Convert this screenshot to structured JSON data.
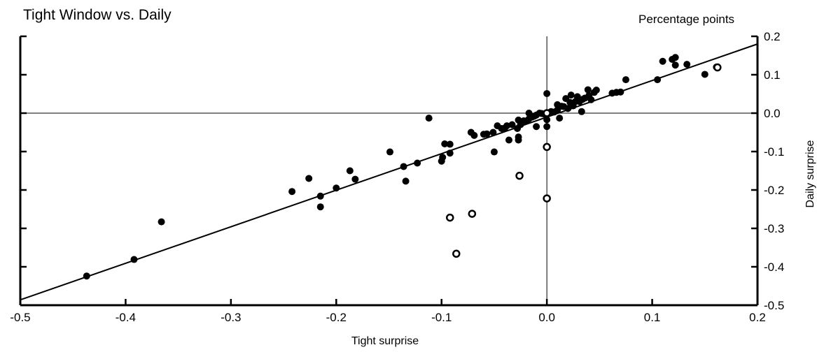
{
  "chart_data": {
    "type": "scatter",
    "title": "Tight Window vs. Daily",
    "units_label": "Percentage points",
    "xlabel": "Tight surprise",
    "ylabel": "Daily surprise",
    "xlim": [
      -0.5,
      0.2
    ],
    "ylim": [
      -0.5,
      0.2
    ],
    "x_ticks": [
      "-0.5",
      "-0.4",
      "-0.3",
      "-0.2",
      "-0.1",
      "0.0",
      "0.1",
      "0.2"
    ],
    "y_ticks": [
      "0.2",
      "0.1",
      "0.0",
      "-0.1",
      "-0.2",
      "-0.3",
      "-0.4",
      "-0.5"
    ],
    "y_axis_side": "right",
    "grid": false,
    "reference_lines": {
      "x_zero": true,
      "y_zero": true
    },
    "fit_line": {
      "from": [
        -0.5,
        -0.486
      ],
      "to": [
        0.2,
        0.18
      ]
    },
    "series": [
      {
        "marker": "filled",
        "points": [
          [
            -0.437,
            -0.424
          ],
          [
            -0.392,
            -0.381
          ],
          [
            -0.366,
            -0.283
          ],
          [
            -0.242,
            -0.204
          ],
          [
            -0.226,
            -0.17
          ],
          [
            -0.215,
            -0.216
          ],
          [
            -0.215,
            -0.244
          ],
          [
            -0.2,
            -0.195
          ],
          [
            -0.187,
            -0.15
          ],
          [
            -0.182,
            -0.172
          ],
          [
            -0.149,
            -0.101
          ],
          [
            -0.136,
            -0.139
          ],
          [
            -0.134,
            -0.177
          ],
          [
            -0.123,
            -0.13
          ],
          [
            -0.112,
            -0.013
          ],
          [
            -0.1,
            -0.125
          ],
          [
            -0.099,
            -0.115
          ],
          [
            -0.097,
            -0.08
          ],
          [
            -0.092,
            -0.081
          ],
          [
            -0.092,
            -0.104
          ],
          [
            -0.072,
            -0.05
          ],
          [
            -0.069,
            -0.058
          ],
          [
            -0.06,
            -0.055
          ],
          [
            -0.057,
            -0.054
          ],
          [
            -0.051,
            -0.05
          ],
          [
            -0.05,
            -0.101
          ],
          [
            -0.047,
            -0.033
          ],
          [
            -0.043,
            -0.04
          ],
          [
            -0.04,
            -0.039
          ],
          [
            -0.038,
            -0.033
          ],
          [
            -0.036,
            -0.07
          ],
          [
            -0.033,
            -0.03
          ],
          [
            -0.028,
            -0.04
          ],
          [
            -0.027,
            -0.018
          ],
          [
            -0.027,
            -0.062
          ],
          [
            -0.027,
            -0.07
          ],
          [
            -0.025,
            -0.03
          ],
          [
            -0.022,
            -0.02
          ],
          [
            -0.019,
            -0.02
          ],
          [
            -0.017,
            -0.015
          ],
          [
            -0.017,
            0.0
          ],
          [
            -0.014,
            -0.01
          ],
          [
            -0.012,
            -0.008
          ],
          [
            -0.01,
            -0.035
          ],
          [
            -0.01,
            -0.005
          ],
          [
            -0.007,
            0.0
          ],
          [
            -0.005,
            -0.001
          ],
          [
            -0.003,
            -0.002
          ],
          [
            0.0,
            0.051
          ],
          [
            0.0,
            -0.017
          ],
          [
            0.0,
            -0.035
          ],
          [
            0.004,
            0.004
          ],
          [
            0.007,
            0.003
          ],
          [
            0.01,
            0.022
          ],
          [
            0.01,
            0.008
          ],
          [
            0.012,
            -0.013
          ],
          [
            0.014,
            0.018
          ],
          [
            0.016,
            0.017
          ],
          [
            0.018,
            0.038
          ],
          [
            0.02,
            0.012
          ],
          [
            0.022,
            0.028
          ],
          [
            0.023,
            0.047
          ],
          [
            0.025,
            0.019
          ],
          [
            0.027,
            0.03
          ],
          [
            0.029,
            0.043
          ],
          [
            0.031,
            0.03
          ],
          [
            0.033,
            0.004
          ],
          [
            0.034,
            0.036
          ],
          [
            0.036,
            0.039
          ],
          [
            0.039,
            0.061
          ],
          [
            0.04,
            0.046
          ],
          [
            0.042,
            0.035
          ],
          [
            0.045,
            0.054
          ],
          [
            0.047,
            0.06
          ],
          [
            0.062,
            0.052
          ],
          [
            0.066,
            0.054
          ],
          [
            0.07,
            0.055
          ],
          [
            0.075,
            0.087
          ],
          [
            0.105,
            0.087
          ],
          [
            0.11,
            0.135
          ],
          [
            0.119,
            0.14
          ],
          [
            0.122,
            0.145
          ],
          [
            0.122,
            0.125
          ],
          [
            0.133,
            0.127
          ],
          [
            0.15,
            0.101
          ],
          [
            0.161,
            0.12
          ]
        ]
      },
      {
        "marker": "open",
        "points": [
          [
            -0.092,
            -0.272
          ],
          [
            -0.086,
            -0.366
          ],
          [
            -0.071,
            -0.262
          ],
          [
            -0.026,
            -0.163
          ],
          [
            0.0,
            0.0
          ],
          [
            0.0,
            -0.088
          ],
          [
            0.0,
            -0.222
          ],
          [
            0.162,
            0.119
          ]
        ]
      }
    ]
  }
}
